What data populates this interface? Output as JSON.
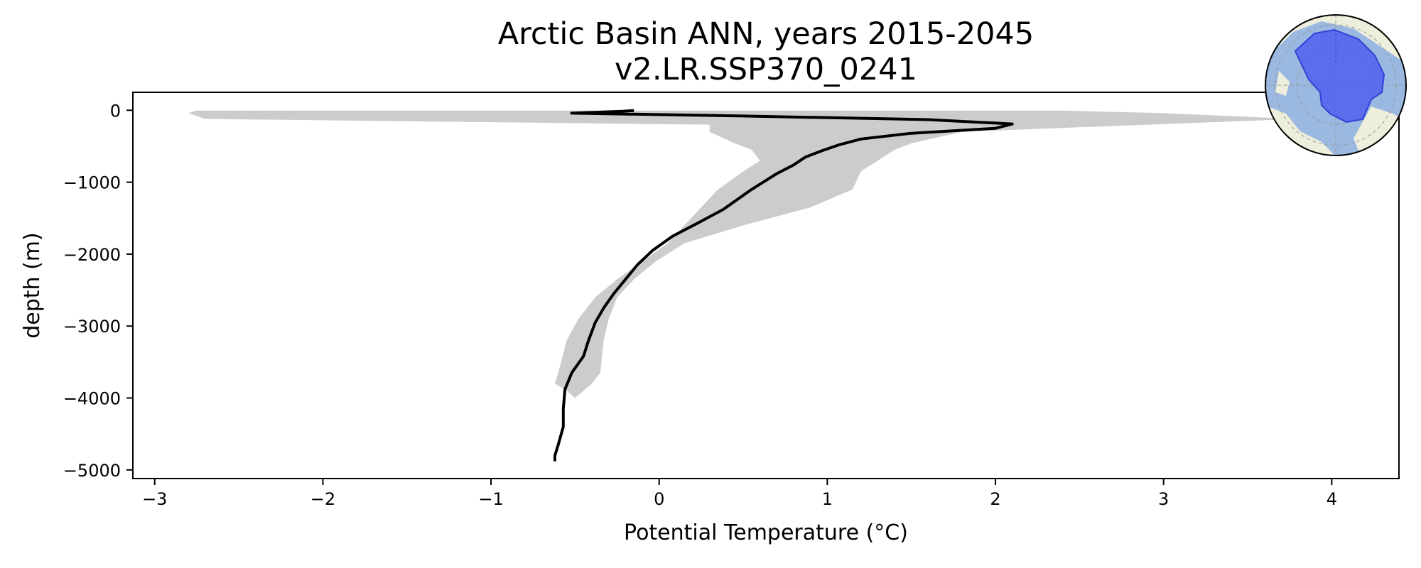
{
  "chart_data": {
    "type": "line",
    "title": "Arctic Basin ANN, years 2015-2045",
    "subtitle": "v2.LR.SSP370_0241",
    "xlabel": "Potential Temperature (°C)",
    "ylabel": "depth (m)",
    "xlim": [
      -3.13,
      4.4
    ],
    "ylim": [
      -5120,
      250
    ],
    "xticks": [
      -3,
      -2,
      -1,
      0,
      1,
      2,
      3,
      4
    ],
    "yticks": [
      0,
      -1000,
      -2000,
      -3000,
      -4000,
      -5000
    ],
    "grid": false,
    "legend": "none",
    "line_color": "#000000",
    "band_color": "#cccccc",
    "series": [
      {
        "style": "line",
        "x": [
          -0.15,
          -0.22,
          -0.52,
          0.5,
          1.6,
          2.1,
          2.0,
          1.5,
          1.2,
          1.07,
          0.97,
          0.87,
          0.8,
          0.7,
          0.55,
          0.38,
          0.22,
          0.08,
          -0.04,
          -0.13,
          -0.2,
          -0.27,
          -0.33,
          -0.38,
          -0.42,
          -0.45,
          -0.52,
          -0.56,
          -0.57,
          -0.57,
          -0.6,
          -0.62,
          -0.62
        ],
        "y": [
          -5,
          -15,
          -40,
          -80,
          -130,
          -190,
          -250,
          -320,
          -400,
          -480,
          -560,
          -650,
          -760,
          -880,
          -1100,
          -1380,
          -1580,
          -1750,
          -1950,
          -2150,
          -2350,
          -2550,
          -2750,
          -2950,
          -3200,
          -3420,
          -3650,
          -3880,
          -4150,
          -4400,
          -4650,
          -4800,
          -4880
        ]
      },
      {
        "style": "band",
        "x_min": [
          -2.75,
          -2.8,
          -2.7,
          0.3,
          0.3,
          0.45,
          0.55,
          0.6,
          0.5,
          0.35,
          0.25,
          0.15,
          0.05,
          -0.1,
          -0.25,
          -0.38,
          -0.48,
          -0.55,
          -0.6,
          -0.62,
          -0.55,
          -0.5
        ],
        "x_max": [
          2.4,
          3.0,
          3.8,
          2.9,
          1.8,
          1.5,
          1.4,
          1.3,
          1.2,
          1.15,
          0.9,
          0.5,
          0.15,
          -0.02,
          -0.15,
          -0.25,
          -0.3,
          -0.33,
          -0.35,
          -0.4,
          -0.45,
          -0.5
        ],
        "y": [
          -5,
          -40,
          -120,
          -200,
          -300,
          -460,
          -550,
          -700,
          -850,
          -1100,
          -1350,
          -1600,
          -1850,
          -2100,
          -2350,
          -2600,
          -2900,
          -3200,
          -3650,
          -3800,
          -3900,
          -4000
        ]
      }
    ]
  },
  "inset_map": {
    "description_icon": "arctic-polar-map-icon",
    "ocean_color": "#9ab8e0",
    "land_color": "#eeeedc",
    "region_color": "#4a5af0"
  }
}
